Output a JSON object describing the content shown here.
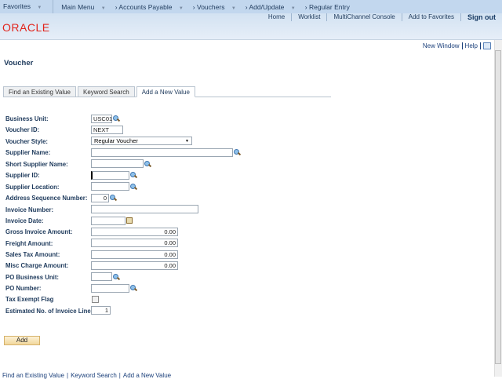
{
  "nav": {
    "favorites": "Favorites",
    "main_menu": "Main Menu",
    "crumbs": [
      "Accounts Payable",
      "Vouchers",
      "Add/Update"
    ],
    "current": "Regular Entry"
  },
  "links": [
    "Home",
    "Worklist",
    "MultiChannel Console",
    "Add to Favorites"
  ],
  "sign_out": "Sign out",
  "logo": "ORACLE",
  "top_right": {
    "new_window": "New Window",
    "help": "Help"
  },
  "title": "Voucher",
  "tabs": [
    {
      "label": "Find an Existing Value"
    },
    {
      "label": "Keyword Search"
    },
    {
      "label": "Add a New Value",
      "active": true
    }
  ],
  "fields": {
    "business_unit": {
      "label": "Business Unit:",
      "value": "USC01"
    },
    "voucher_id": {
      "label": "Voucher ID:",
      "value": "NEXT"
    },
    "voucher_style": {
      "label": "Voucher Style:",
      "value": "Regular Voucher"
    },
    "supplier_name": {
      "label": "Supplier Name:",
      "value": ""
    },
    "short_supplier_name": {
      "label": "Short Supplier Name:",
      "value": ""
    },
    "supplier_id": {
      "label": "Supplier ID:",
      "value": ""
    },
    "supplier_location": {
      "label": "Supplier Location:",
      "value": ""
    },
    "address_seq": {
      "label": "Address Sequence Number:",
      "value": "0"
    },
    "invoice_number": {
      "label": "Invoice Number:",
      "value": ""
    },
    "invoice_date": {
      "label": "Invoice Date:",
      "value": ""
    },
    "gross_amount": {
      "label": "Gross Invoice Amount:",
      "value": "0.00"
    },
    "freight_amount": {
      "label": "Freight Amount:",
      "value": "0.00"
    },
    "sales_tax": {
      "label": "Sales Tax Amount:",
      "value": "0.00"
    },
    "misc_charge": {
      "label": "Misc Charge Amount:",
      "value": "0.00"
    },
    "po_bu": {
      "label": "PO Business Unit:",
      "value": ""
    },
    "po_number": {
      "label": "PO Number:",
      "value": ""
    },
    "tax_exempt": {
      "label": "Tax Exempt Flag",
      "checked": false
    },
    "est_lines": {
      "label": "Estimated No. of Invoice Lines:",
      "value": "1"
    }
  },
  "add_button": "Add",
  "footer_links": [
    "Find an Existing Value",
    "Keyword Search",
    "Add a New Value"
  ]
}
